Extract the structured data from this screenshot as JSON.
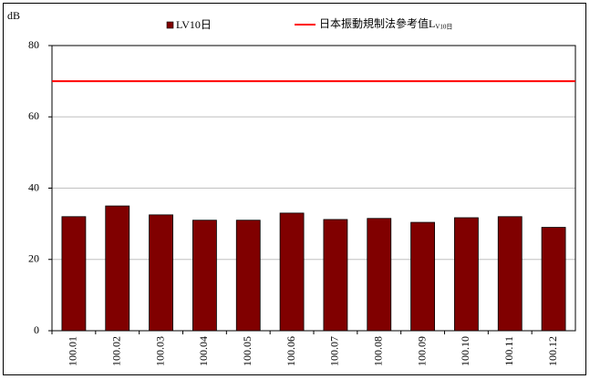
{
  "chart_data": {
    "type": "bar",
    "y_label": "dB",
    "categories": [
      "100.01",
      "100.02",
      "100.03",
      "100.04",
      "100.05",
      "100.06",
      "100.07",
      "100.08",
      "100.09",
      "100.10",
      "100.11",
      "100.12"
    ],
    "series": [
      {
        "name": "LV10日",
        "color": "#800000",
        "values": [
          32,
          35,
          32.5,
          31,
          31,
          33,
          31.2,
          31.5,
          30.4,
          31.7,
          32,
          29
        ]
      }
    ],
    "reference_lines": [
      {
        "name": "日本振動規制法參考值L",
        "name_subscript": "V10日",
        "color": "#ff0000",
        "value": 70
      }
    ],
    "ylim": [
      0,
      80
    ],
    "yticks": [
      0,
      20,
      40,
      60,
      80
    ],
    "grid": true
  }
}
